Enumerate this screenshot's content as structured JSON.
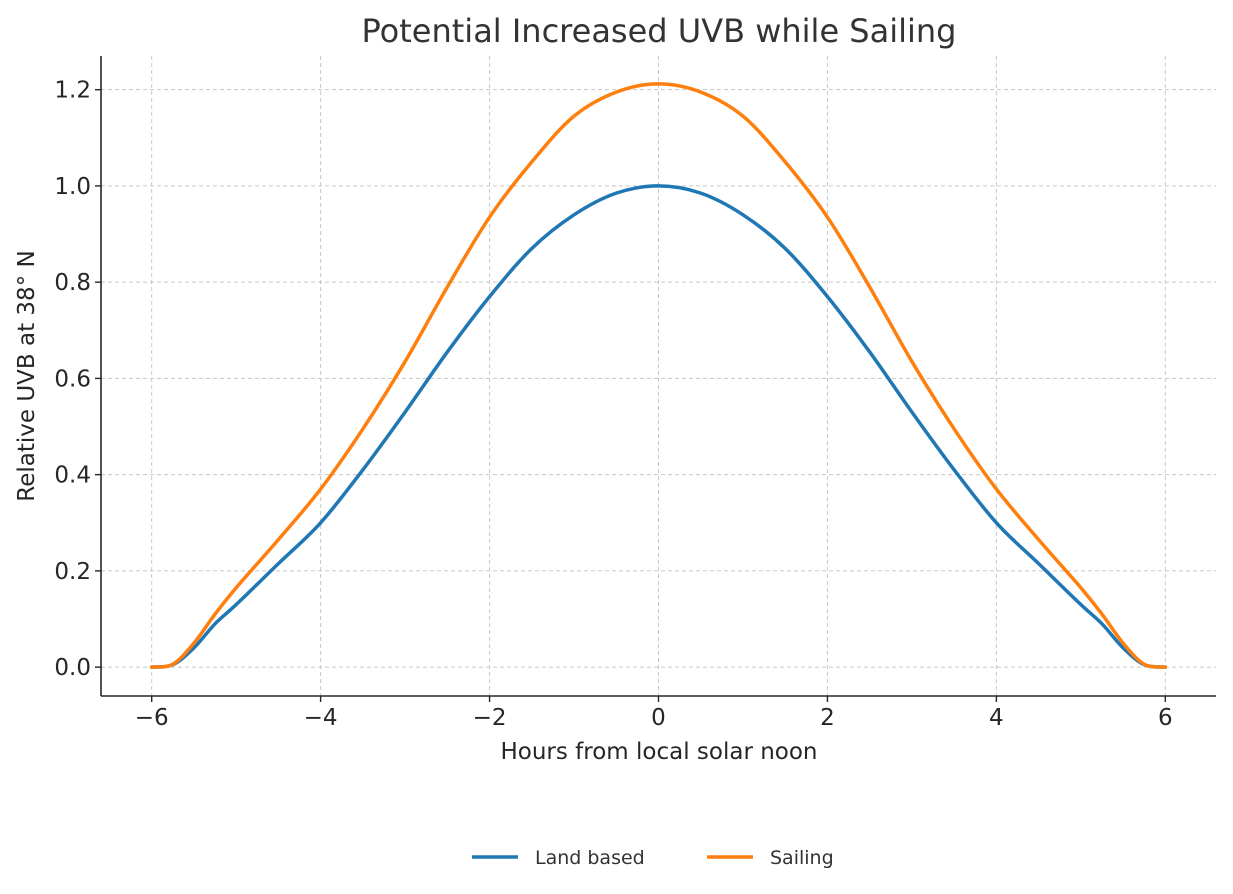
{
  "chart_data": {
    "type": "line",
    "title": "Potential Increased UVB while Sailing",
    "xlabel": "Hours from local solar noon",
    "ylabel": "Relative UVB at 38° N",
    "xlim": [
      -6.6,
      6.6
    ],
    "ylim": [
      -0.06,
      1.27
    ],
    "xticks": [
      -6,
      -4,
      -2,
      0,
      2,
      4,
      6
    ],
    "xtick_labels": [
      "−6",
      "−4",
      "−2",
      "0",
      "2",
      "4",
      "6"
    ],
    "yticks": [
      0.0,
      0.2,
      0.4,
      0.6,
      0.8,
      1.0,
      1.2
    ],
    "ytick_labels": [
      "0.0",
      "0.2",
      "0.4",
      "0.6",
      "0.8",
      "1.0",
      "1.2"
    ],
    "grid": true,
    "legend_position": "bottom-center",
    "x": [
      -6,
      -5.75,
      -5.5,
      -5.25,
      -5,
      -4.5,
      -4,
      -3.5,
      -3,
      -2.5,
      -2,
      -1.5,
      -1,
      -0.5,
      0,
      0.5,
      1,
      1.5,
      2,
      2.5,
      3,
      3.5,
      4,
      4.5,
      5,
      5.25,
      5.5,
      5.75,
      6
    ],
    "series": [
      {
        "name": "Land based",
        "color": "#1f77b4",
        "values": [
          0.0,
          0.005,
          0.04,
          0.09,
          0.13,
          0.215,
          0.3,
          0.41,
          0.53,
          0.655,
          0.77,
          0.87,
          0.94,
          0.985,
          1.0,
          0.985,
          0.94,
          0.87,
          0.77,
          0.655,
          0.53,
          0.41,
          0.3,
          0.215,
          0.13,
          0.09,
          0.04,
          0.005,
          0.0
        ]
      },
      {
        "name": "Sailing",
        "color": "#ff7f0e",
        "values": [
          0.0,
          0.006,
          0.05,
          0.11,
          0.165,
          0.265,
          0.37,
          0.495,
          0.635,
          0.79,
          0.935,
          1.05,
          1.145,
          1.195,
          1.212,
          1.195,
          1.145,
          1.05,
          0.935,
          0.79,
          0.635,
          0.495,
          0.37,
          0.265,
          0.165,
          0.11,
          0.05,
          0.006,
          0.0
        ]
      }
    ]
  }
}
